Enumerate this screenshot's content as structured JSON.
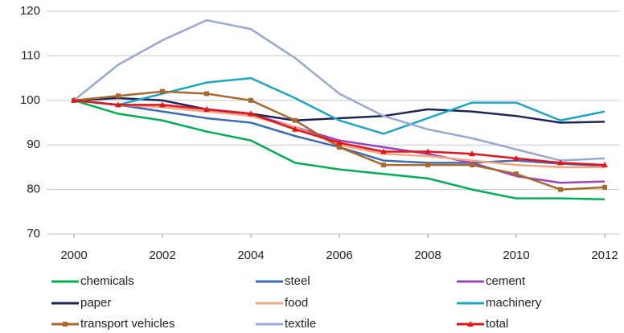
{
  "chart_data": {
    "type": "line",
    "x": [
      2000,
      2001,
      2002,
      2003,
      2004,
      2005,
      2006,
      2007,
      2008,
      2009,
      2010,
      2011,
      2012
    ],
    "xlim": [
      2000,
      2012
    ],
    "xticks": [
      2000,
      2002,
      2004,
      2006,
      2008,
      2010,
      2012
    ],
    "ylim": [
      70,
      120
    ],
    "yticks": [
      70,
      80,
      90,
      100,
      110,
      120
    ],
    "grid": true,
    "legend": "bottom",
    "series": [
      {
        "name": "chemicals",
        "color": "#00b050",
        "values": [
          100,
          97,
          95.5,
          93,
          91,
          86,
          84.5,
          83.5,
          82.5,
          80,
          78,
          78,
          77.8
        ]
      },
      {
        "name": "steel",
        "color": "#3a6db3",
        "values": [
          100,
          99,
          97.5,
          96,
          95,
          92,
          89.5,
          86.5,
          86,
          86,
          86.5,
          85.8,
          85.3
        ]
      },
      {
        "name": "cement",
        "color": "#9a45c0",
        "values": [
          100,
          99,
          98.5,
          97.5,
          97,
          94,
          91,
          89.5,
          88,
          86,
          83,
          81.5,
          81.8
        ]
      },
      {
        "name": "paper",
        "color": "#1c2458",
        "values": [
          100,
          100.5,
          100,
          98,
          97,
          95.5,
          96,
          96.5,
          98,
          97.5,
          96.5,
          95,
          95.2
        ]
      },
      {
        "name": "food",
        "color": "#f6a77f",
        "values": [
          100,
          99,
          98.5,
          97.5,
          96.5,
          94,
          90,
          88,
          87.5,
          86.5,
          85.5,
          85,
          85
        ]
      },
      {
        "name": "machinery",
        "color": "#1aa6c4",
        "values": [
          100,
          99,
          101.5,
          104,
          105,
          100.5,
          95.5,
          92.5,
          96,
          99.5,
          99.5,
          95.5,
          97.5
        ]
      },
      {
        "name": "transport vehicles",
        "color": "#a8682e",
        "marker": "square",
        "values": [
          100,
          101,
          102,
          101.5,
          100,
          95.5,
          89.5,
          85.5,
          85.5,
          85.5,
          83.5,
          80,
          80.5
        ]
      },
      {
        "name": "textile",
        "color": "#95a9d3",
        "values": [
          100,
          108,
          113.5,
          118,
          116,
          109.5,
          101.5,
          96.5,
          93.5,
          91.5,
          89,
          86.5,
          87
        ]
      },
      {
        "name": "total",
        "color": "#e3141b",
        "marker": "triangle",
        "values": [
          100,
          99,
          99,
          98,
          97,
          93.5,
          90.5,
          88.5,
          88.5,
          88,
          87,
          86,
          85.5
        ]
      }
    ]
  }
}
